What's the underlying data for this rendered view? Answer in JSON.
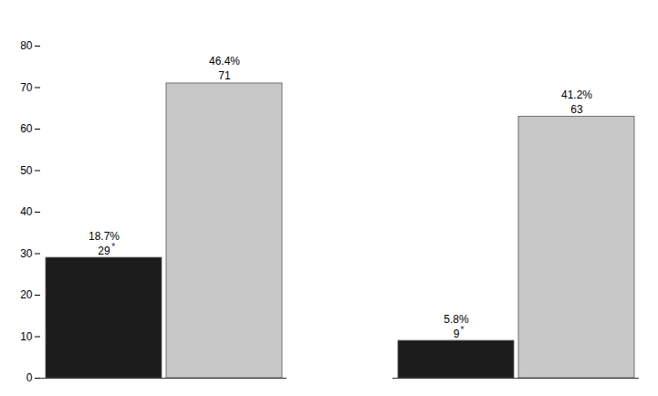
{
  "chart_data": {
    "type": "bar",
    "categories": [
      null,
      null
    ],
    "series": [
      {
        "color": "#1c1c1c",
        "values": [
          29,
          9
        ],
        "percent_labels": [
          "18.7%",
          "5.8%"
        ],
        "superscript": "*",
        "superscript_color": "#1a1a6e"
      },
      {
        "color": "#c8c8c8",
        "values": [
          71,
          63
        ],
        "percent_labels": [
          "46.4%",
          "41.2%"
        ]
      }
    ],
    "ylim": [
      0,
      80
    ],
    "yticks": [
      0,
      10,
      20,
      30,
      40,
      50,
      60,
      70,
      80
    ],
    "grid": false,
    "data_labels": true,
    "tick_labels": "y"
  }
}
